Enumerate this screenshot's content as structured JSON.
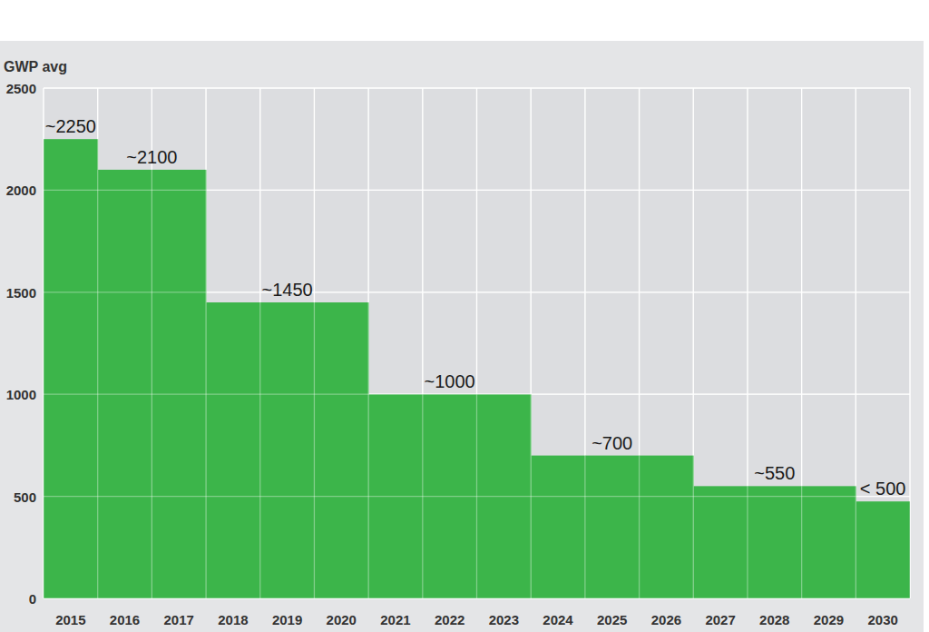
{
  "chart_data": {
    "type": "bar",
    "y_label": "GWP avg",
    "categories": [
      "2015",
      "2016",
      "2017",
      "2018",
      "2019",
      "2020",
      "2021",
      "2022",
      "2023",
      "2024",
      "2025",
      "2026",
      "2027",
      "2028",
      "2029",
      "2030"
    ],
    "values": [
      2250,
      2100,
      2100,
      1450,
      1450,
      1450,
      1000,
      1000,
      1000,
      700,
      700,
      700,
      550,
      550,
      550,
      475
    ],
    "value_labels": [
      "~2250",
      "~2100",
      null,
      "~1450",
      null,
      null,
      "~1000",
      null,
      null,
      "~700",
      null,
      null,
      "~550",
      null,
      null,
      "< 500"
    ],
    "color": "#3cb54a",
    "ylim": [
      0,
      2500
    ],
    "yticks": [
      0,
      500,
      1000,
      1500,
      2000,
      2500
    ],
    "grid": true,
    "data_labels": true
  }
}
